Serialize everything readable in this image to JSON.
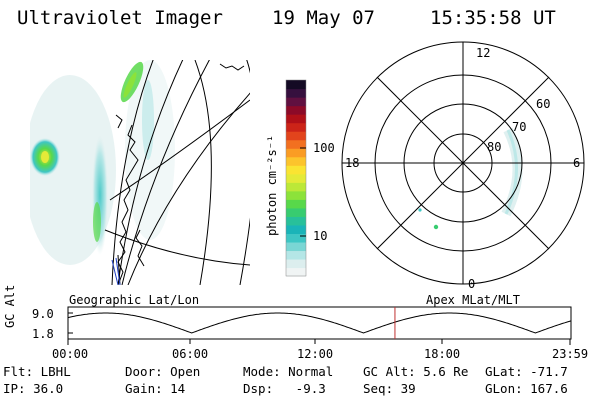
{
  "header": {
    "instrument": "Ultraviolet Imager",
    "date": "19 May 07",
    "time": "15:35:58 UT"
  },
  "colorbar": {
    "label": "photon cm⁻²s⁻¹",
    "scale": "log",
    "tick_labels": [
      "100",
      "10"
    ],
    "colors": [
      "#f0f4f4",
      "#dceeee",
      "#b4e6e6",
      "#7ad6d4",
      "#3ec6c4",
      "#1ab4b8",
      "#28c09a",
      "#38cc70",
      "#58d84a",
      "#8ce23a",
      "#bce838",
      "#e4ea38",
      "#fae432",
      "#fcc42c",
      "#fa9c24",
      "#f27020",
      "#e2441c",
      "#cc2418",
      "#b01018",
      "#8c0a28",
      "#601040",
      "#36103e",
      "#140a24"
    ]
  },
  "left_panel": {
    "caption": "Geographic Lat/Lon"
  },
  "polar_panel": {
    "caption": "Apex MLat/MLT",
    "mlt_labels": {
      "top": "12",
      "bottom": "0",
      "left": "18",
      "right": "6"
    },
    "mlat_labels": [
      "60",
      "70",
      "80"
    ]
  },
  "timeline": {
    "ylabel": "GC Alt",
    "ytick_top": "9.0",
    "ytick_bottom": "1.8",
    "time_labels": [
      "00:00",
      "06:00",
      "12:00",
      "18:00",
      "23:59"
    ],
    "current_marker_hours": 15.6,
    "series_color": "#000000",
    "marker_color": "#c03030"
  },
  "footer": {
    "row1": [
      "Flt: LBHL",
      "Door: Open",
      "Mode: Normal",
      "GC Alt: 5.6 Re",
      "GLat: -71.7"
    ],
    "row2": [
      "IP: 36.0",
      "Gain: 14",
      "Dsp:   -9.3",
      "Seq: 39",
      "GLon: 167.6"
    ]
  }
}
